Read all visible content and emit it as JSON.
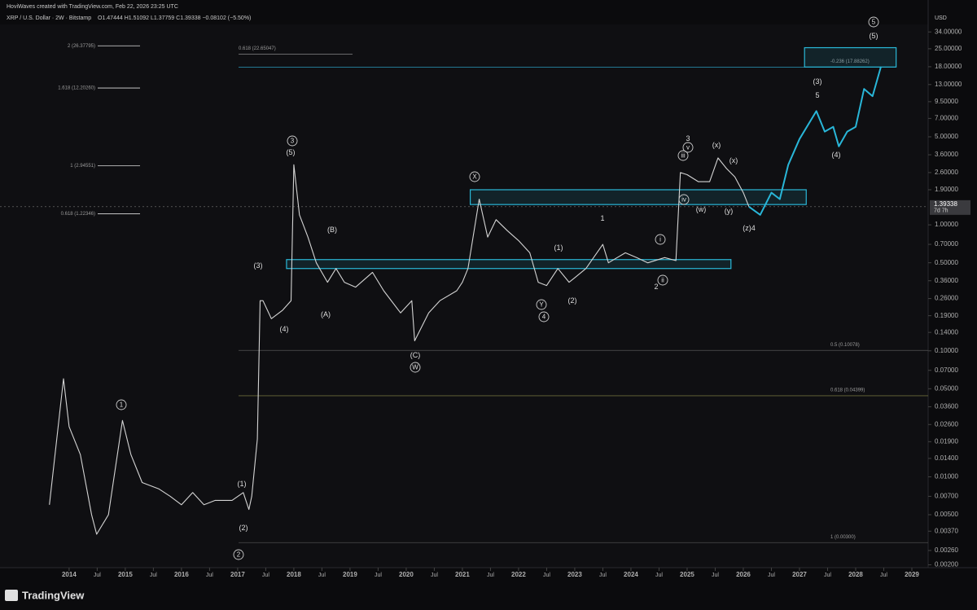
{
  "chart_data": {
    "type": "line",
    "credit": "HoviWaves created with TradingView.com, Feb 22, 2026 23:25 UTC",
    "title": "XRP / U.S. Dollar · 2W · Bitstamp",
    "ohlc": "O1.47444 H1.51092 L1.37759 C1.39338 −0.08102 (−5.50%)",
    "currency": "USD",
    "last_price": 1.39338,
    "countdown": "7d 7h",
    "brand": "TradingView",
    "log_scale": true,
    "xlim": [
      2012.77,
      2029.29
    ],
    "ylim": [
      0.0019,
      39
    ],
    "xticks": [
      2014,
      {
        "value": 2014.5,
        "label": "Jul"
      },
      2015,
      {
        "value": 2015.5,
        "label": "Jul"
      },
      2016,
      {
        "value": 2016.5,
        "label": "Jul"
      },
      2017,
      {
        "value": 2017.5,
        "label": "Jul"
      },
      2018,
      {
        "value": 2018.5,
        "label": "Jul"
      },
      2019,
      {
        "value": 2019.5,
        "label": "Jul"
      },
      2020,
      {
        "value": 2020.5,
        "label": "Jul"
      },
      2021,
      {
        "value": 2021.5,
        "label": "Jul"
      },
      2022,
      {
        "value": 2022.5,
        "label": "Jul"
      },
      2023,
      {
        "value": 2023.5,
        "label": "Jul"
      },
      2024,
      {
        "value": 2024.5,
        "label": "Jul"
      },
      2025,
      {
        "value": 2025.5,
        "label": "Jul"
      },
      2026,
      {
        "value": 2026.5,
        "label": "Jul"
      },
      2027,
      {
        "value": 2027.5,
        "label": "Jul"
      },
      2028,
      {
        "value": 2028.5,
        "label": "Jul"
      },
      2029
    ],
    "yticks": [
      {
        "value": 34,
        "label": "34.00000"
      },
      {
        "value": 25,
        "label": "25.00000"
      },
      {
        "value": 18,
        "label": "18.00000"
      },
      {
        "value": 13,
        "label": "13.00000"
      },
      {
        "value": 9.5,
        "label": "9.50000"
      },
      {
        "value": 7,
        "label": "7.00000"
      },
      {
        "value": 5,
        "label": "5.00000"
      },
      {
        "value": 3.6,
        "label": "3.60000"
      },
      {
        "value": 2.6,
        "label": "2.60000"
      },
      {
        "value": 1.9,
        "label": "1.90000"
      },
      {
        "value": 1,
        "label": "1.00000"
      },
      {
        "value": 0.7,
        "label": "0.70000"
      },
      {
        "value": 0.5,
        "label": "0.50000"
      },
      {
        "value": 0.36,
        "label": "0.36000"
      },
      {
        "value": 0.26,
        "label": "0.26000"
      },
      {
        "value": 0.19,
        "label": "0.19000"
      },
      {
        "value": 0.14,
        "label": "0.14000"
      },
      {
        "value": 0.1,
        "label": "0.10000"
      },
      {
        "value": 0.07,
        "label": "0.07000"
      },
      {
        "value": 0.05,
        "label": "0.05000"
      },
      {
        "value": 0.036,
        "label": "0.03600"
      },
      {
        "value": 0.026,
        "label": "0.02600"
      },
      {
        "value": 0.019,
        "label": "0.01900"
      },
      {
        "value": 0.014,
        "label": "0.01400"
      },
      {
        "value": 0.01,
        "label": "0.01000"
      },
      {
        "value": 0.007,
        "label": "0.00700"
      },
      {
        "value": 0.005,
        "label": "0.00500"
      },
      {
        "value": 0.0037,
        "label": "0.00370"
      },
      {
        "value": 0.0026,
        "label": "0.00260"
      },
      {
        "value": 0.002,
        "label": "0.00200"
      }
    ],
    "series": [
      {
        "color": "#d4d4d4",
        "x": [
          2013.65,
          2013.9,
          2014.0,
          2014.2,
          2014.4,
          2014.49,
          2014.7,
          2014.95,
          2015.1,
          2015.3,
          2015.6,
          2015.8,
          2016.0,
          2016.2,
          2016.4,
          2016.6,
          2016.9,
          2017.1,
          2017.2,
          2017.25,
          2017.35,
          2017.4,
          2017.45,
          2017.6,
          2017.8,
          2017.95,
          2018.0,
          2018.1,
          2018.25,
          2018.4,
          2018.6,
          2018.75,
          2018.9,
          2019.1,
          2019.4,
          2019.6,
          2019.9,
          2020.1,
          2020.15,
          2020.4,
          2020.6,
          2020.9,
          2021.0,
          2021.1,
          2021.3,
          2021.45,
          2021.6,
          2021.8,
          2022.0,
          2022.2,
          2022.35,
          2022.5,
          2022.7,
          2022.9,
          2023.0,
          2023.2,
          2023.5,
          2023.6,
          2023.9,
          2024.1,
          2024.3,
          2024.6,
          2024.8,
          2024.88,
          2025.0,
          2025.2,
          2025.4,
          2025.55,
          2025.7,
          2025.85,
          2026.0,
          2026.1
        ],
        "values": [
          0.006,
          0.06,
          0.025,
          0.015,
          0.005,
          0.0035,
          0.005,
          0.028,
          0.015,
          0.009,
          0.008,
          0.007,
          0.006,
          0.0075,
          0.006,
          0.0065,
          0.0065,
          0.0075,
          0.0055,
          0.007,
          0.02,
          0.25,
          0.25,
          0.18,
          0.21,
          0.25,
          3.0,
          1.2,
          0.8,
          0.5,
          0.35,
          0.45,
          0.35,
          0.32,
          0.42,
          0.3,
          0.2,
          0.25,
          0.12,
          0.2,
          0.25,
          0.3,
          0.35,
          0.45,
          1.6,
          0.8,
          1.1,
          0.9,
          0.75,
          0.6,
          0.35,
          0.33,
          0.45,
          0.35,
          0.38,
          0.45,
          0.7,
          0.5,
          0.6,
          0.55,
          0.5,
          0.55,
          0.52,
          2.6,
          2.5,
          2.2,
          2.2,
          3.4,
          2.8,
          2.4,
          1.8,
          1.39338
        ]
      },
      {
        "color": "#29b6d8",
        "x": [
          2026.1,
          2026.3,
          2026.5,
          2026.65,
          2026.8,
          2027.0,
          2027.3,
          2027.45,
          2027.6,
          2027.7,
          2027.85,
          2028.0,
          2028.15,
          2028.3,
          2028.45
        ],
        "values": [
          1.39338,
          1.2,
          1.8,
          1.6,
          3.0,
          4.8,
          8,
          5.5,
          6,
          4.2,
          5.5,
          6,
          12,
          10.5,
          18
        ]
      }
    ],
    "zones": [
      {
        "start": 2017.87,
        "end": 2025.78,
        "low": 0.45,
        "high": 0.53
      },
      {
        "start": 2021.14,
        "end": 2027.12,
        "low": 1.45,
        "high": 1.9
      },
      {
        "start": 2027.09,
        "end": 2028.72,
        "low": 17.9,
        "high": 25.5
      }
    ],
    "levels": [
      {
        "label": "2 (26.37795)",
        "value": 26.37795
      },
      {
        "label": "0.618 (22.65047)",
        "value": 22.65047
      },
      {
        "label": "1.618 (12.20260)",
        "value": 12.2026
      },
      {
        "label": "1 (2.94551)",
        "value": 2.94551
      },
      {
        "label": "0.618 (1.22346)",
        "value": 1.22346
      },
      {
        "label": "-0.236 (17.88262)",
        "value": 17.88262
      },
      {
        "label": "0.5 (0.10078)",
        "value": 0.10078
      },
      {
        "label": "0.618 (0.04399)",
        "value": 0.04399
      },
      {
        "label": "1 (0.00300)",
        "value": 0.003
      }
    ],
    "wave_labels": [
      {
        "text": "5",
        "circled": true
      },
      {
        "text": "(5)",
        "circled": false
      },
      {
        "text": "(3)",
        "circled": false
      },
      {
        "text": "5",
        "circled": false
      },
      {
        "text": "(4)",
        "circled": false
      },
      {
        "text": "3",
        "circled": false
      },
      {
        "text": "v",
        "circled": true
      },
      {
        "text": "iii",
        "circled": true
      },
      {
        "text": "(x)",
        "circled": false
      },
      {
        "text": "(x)",
        "circled": false
      },
      {
        "text": "iv",
        "circled": true
      },
      {
        "text": "(w)",
        "circled": false
      },
      {
        "text": "(y)",
        "circled": false
      },
      {
        "text": "(z)4",
        "circled": false
      },
      {
        "text": "1",
        "circled": false
      },
      {
        "text": "i",
        "circled": true
      },
      {
        "text": "ii",
        "circled": true
      },
      {
        "text": "2",
        "circled": false
      },
      {
        "text": "(1)",
        "circled": false
      },
      {
        "text": "(2)",
        "circled": false
      },
      {
        "text": "Y",
        "circled": true
      },
      {
        "text": "4",
        "circled": true
      },
      {
        "text": "X",
        "circled": true
      },
      {
        "text": "(C)",
        "circled": false
      },
      {
        "text": "W",
        "circled": true
      },
      {
        "text": "3",
        "circled": true
      },
      {
        "text": "(5)",
        "circled": false
      },
      {
        "text": "(3)",
        "circled": false
      },
      {
        "text": "(4)",
        "circled": false
      },
      {
        "text": "(B)",
        "circled": false
      },
      {
        "text": "(A)",
        "circled": false
      },
      {
        "text": "1",
        "circled": true
      },
      {
        "text": "(1)",
        "circled": false
      },
      {
        "text": "(2)",
        "circled": false
      },
      {
        "text": "2",
        "circled": true
      }
    ]
  }
}
